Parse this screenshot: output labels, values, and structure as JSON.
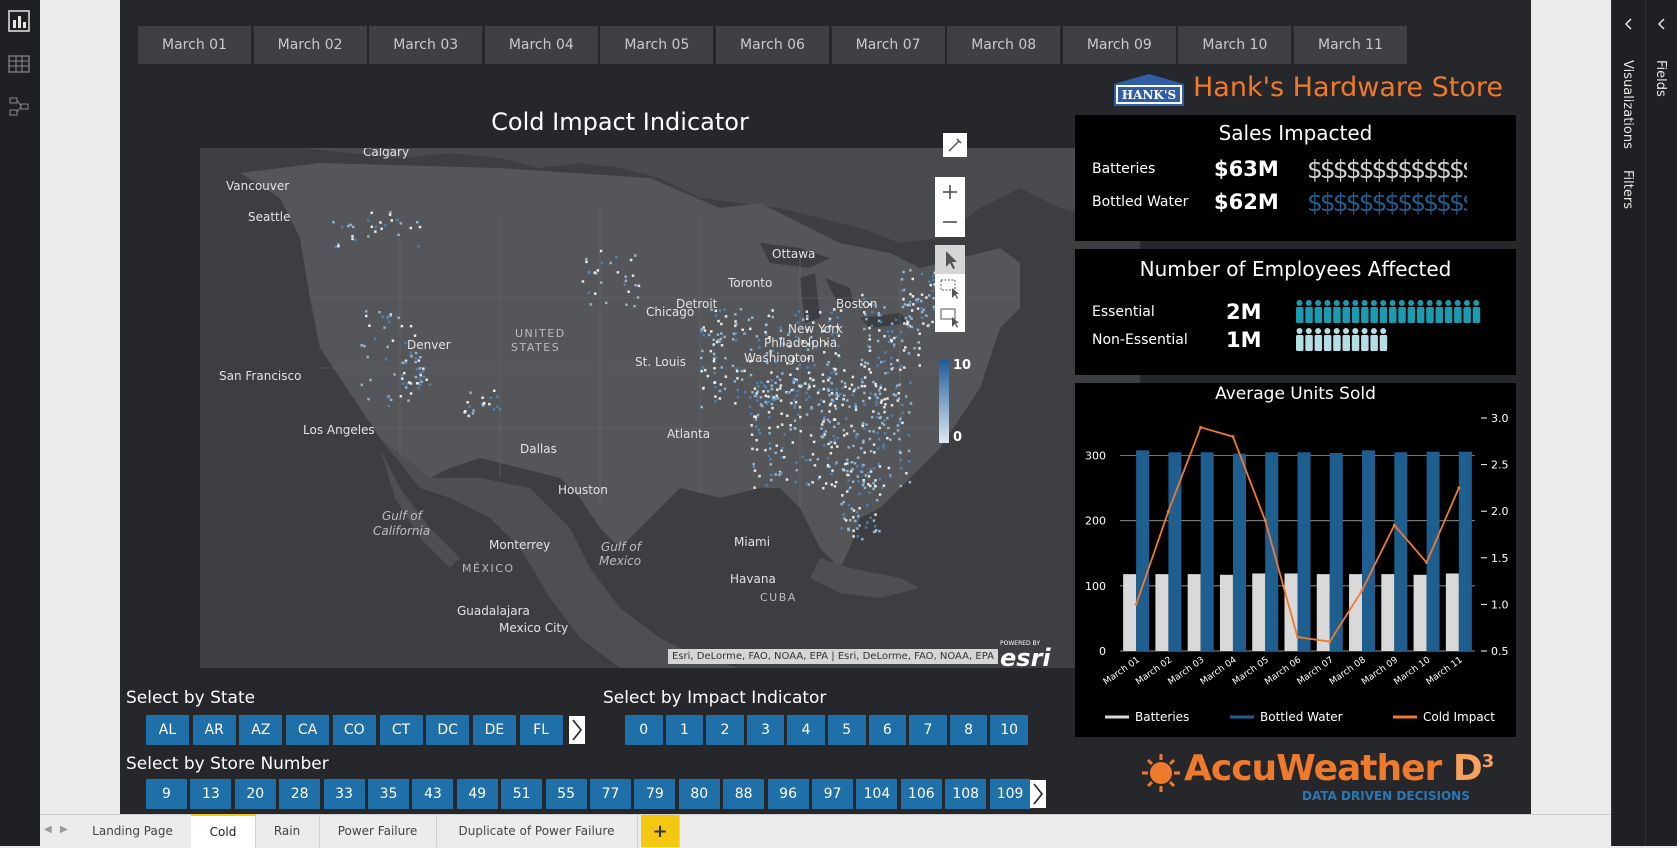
{
  "dates": [
    "March 01",
    "March 02",
    "March 03",
    "March 04",
    "March 05",
    "March 06",
    "March 07",
    "March 08",
    "March 09",
    "March 10",
    "March 11"
  ],
  "brand": {
    "title": "Hank's Hardware Store",
    "logo_text": "HANK'S",
    "accent": "#f07a2c"
  },
  "map": {
    "title": "Cold Impact Indicator",
    "legend_max": "10",
    "legend_min": "0",
    "attribution": "Esri, DeLorme, FAO, NOAA, EPA | Esri, DeLorme, FAO, NOAA, EPA",
    "esri_small": "POWERED BY",
    "esri": "esri",
    "places": [
      {
        "n": "Calgary"
      },
      {
        "n": "Vancouver"
      },
      {
        "n": "Seattle"
      },
      {
        "n": "Ottawa"
      },
      {
        "n": "Toronto"
      },
      {
        "n": "Boston"
      },
      {
        "n": "New York"
      },
      {
        "n": "Philadelphia"
      },
      {
        "n": "Washington"
      },
      {
        "n": "Chicago"
      },
      {
        "n": "Detroit"
      },
      {
        "n": "UNITED"
      },
      {
        "n": "STATES"
      },
      {
        "n": "Denver"
      },
      {
        "n": "San Francisco"
      },
      {
        "n": "St. Louis"
      },
      {
        "n": "Los Angeles"
      },
      {
        "n": "Dallas"
      },
      {
        "n": "Houston"
      },
      {
        "n": "Atlanta"
      },
      {
        "n": "Miami"
      },
      {
        "n": "Gulf of"
      },
      {
        "n": "California"
      },
      {
        "n": "Monterrey"
      },
      {
        "n": "MÉXICO"
      },
      {
        "n": "Gulf of"
      },
      {
        "n": "Mexico"
      },
      {
        "n": "Havana"
      },
      {
        "n": "CUBA"
      },
      {
        "n": "Guadalajara"
      },
      {
        "n": "Mexico City"
      }
    ]
  },
  "sales": {
    "title": "Sales Impacted",
    "rows": [
      {
        "label": "Batteries",
        "value": "$63M",
        "glyphs": "$$$$$$$$$$$$$$",
        "color": "#cfcfcf"
      },
      {
        "label": "Bottled Water",
        "value": "$62M",
        "glyphs": "$$$$$$$$$$$$$$",
        "color": "#1e5f90"
      }
    ]
  },
  "employees": {
    "title": "Number of Employees Affected",
    "rows": [
      {
        "label": "Essential",
        "value": "2M",
        "count": 20,
        "color": "#1b9bb0"
      },
      {
        "label": "Non-Essential",
        "value": "1M",
        "count": 10,
        "color": "#b7dde4"
      }
    ]
  },
  "chart_data": {
    "type": "bar",
    "title": "Average Units Sold",
    "categories": [
      "March 01",
      "March 02",
      "March 03",
      "March 04",
      "March 05",
      "March 06",
      "March 07",
      "March 08",
      "March 09",
      "March 10",
      "March 11"
    ],
    "series": [
      {
        "name": "Batteries",
        "type": "bar",
        "color": "#d9d9d9",
        "values": [
          118,
          118,
          118,
          117,
          119,
          119,
          118,
          118,
          118,
          117,
          119
        ]
      },
      {
        "name": "Bottled Water",
        "type": "bar",
        "color": "#1e5f90",
        "values": [
          308,
          305,
          305,
          303,
          305,
          305,
          304,
          308,
          305,
          306,
          306
        ]
      },
      {
        "name": "Cold Impact",
        "type": "line",
        "axis": "right",
        "color": "#f07a2c",
        "values": [
          1.0,
          2.0,
          2.9,
          2.8,
          1.9,
          0.65,
          0.6,
          1.15,
          1.85,
          1.45,
          2.25
        ]
      }
    ],
    "yticks": [
      "0",
      "100",
      "200",
      "300"
    ],
    "ylim": [
      0,
      350
    ],
    "y2ticks": [
      "0.5",
      "1.0",
      "1.5",
      "2.0",
      "2.5",
      "3.0"
    ],
    "y2lim": [
      0.5,
      3.0
    ],
    "legend": "bottom"
  },
  "filters": {
    "state_title": "Select by State",
    "states": [
      "AL",
      "AR",
      "AZ",
      "CA",
      "CO",
      "CT",
      "DC",
      "DE",
      "FL"
    ],
    "impact_title": "Select by Impact Indicator",
    "impacts": [
      "0",
      "1",
      "2",
      "3",
      "4",
      "5",
      "6",
      "7",
      "8",
      "10"
    ],
    "store_title": "Select by Store Number",
    "stores": [
      "9",
      "13",
      "20",
      "28",
      "33",
      "35",
      "43",
      "49",
      "51",
      "55",
      "77",
      "79",
      "80",
      "88",
      "96",
      "97",
      "104",
      "106",
      "108",
      "109"
    ]
  },
  "accuweather": {
    "name": "AccuWeather",
    "d3": "D",
    "sup": "3",
    "tagline": "DATA DRIVEN DECISIONS"
  },
  "panes": {
    "visualizations": "Visualizations",
    "filters": "Filters",
    "fields": "Fields"
  },
  "tabs": [
    "Landing Page",
    "Cold",
    "Rain",
    "Power Failure",
    "Duplicate of Power Failure"
  ],
  "add_tab": "+"
}
